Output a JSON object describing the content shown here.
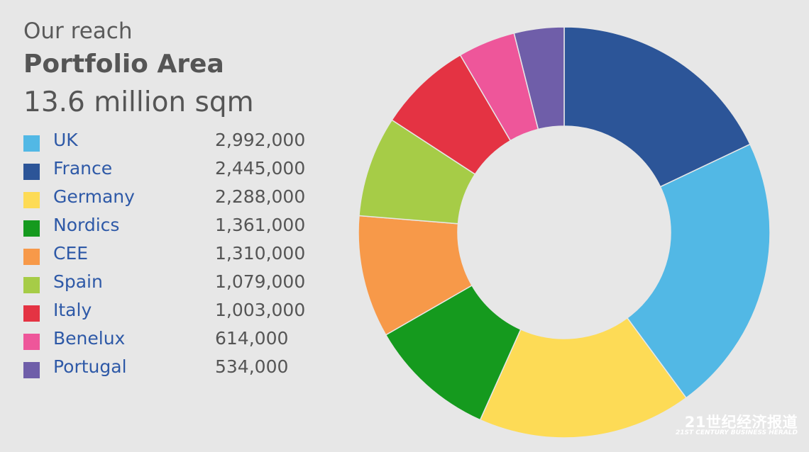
{
  "header": {
    "subtitle": "Our reach",
    "title": "Portfolio Area",
    "total": "13.6 million sqm"
  },
  "watermark": {
    "line1": "21世纪经济报道",
    "line2": "21ST CENTURY BUSINESS HERALD"
  },
  "chart_data": {
    "type": "pie",
    "variant": "donut",
    "title": "Portfolio Area",
    "subtitle": "Our reach",
    "total_label": "13.6 million sqm",
    "legend_position": "left",
    "slice_order": [
      "France",
      "UK",
      "Germany",
      "Nordics",
      "CEE",
      "Spain",
      "Italy",
      "Benelux",
      "Portugal"
    ],
    "categories": [
      "UK",
      "France",
      "Germany",
      "Nordics",
      "CEE",
      "Spain",
      "Italy",
      "Benelux",
      "Portugal"
    ],
    "values": [
      2992000,
      2445000,
      2288000,
      1361000,
      1310000,
      1079000,
      1003000,
      614000,
      534000
    ],
    "value_labels": [
      "2,992,000",
      "2,445,000",
      "2,288,000",
      "1,361,000",
      "1,310,000",
      "1,079,000",
      "1,003,000",
      "614,000",
      "534,000"
    ],
    "colors": [
      "#52b8e5",
      "#2c5598",
      "#fddb56",
      "#159a1e",
      "#f79949",
      "#a6cc47",
      "#e43343",
      "#ee569a",
      "#6f5ea9"
    ]
  }
}
